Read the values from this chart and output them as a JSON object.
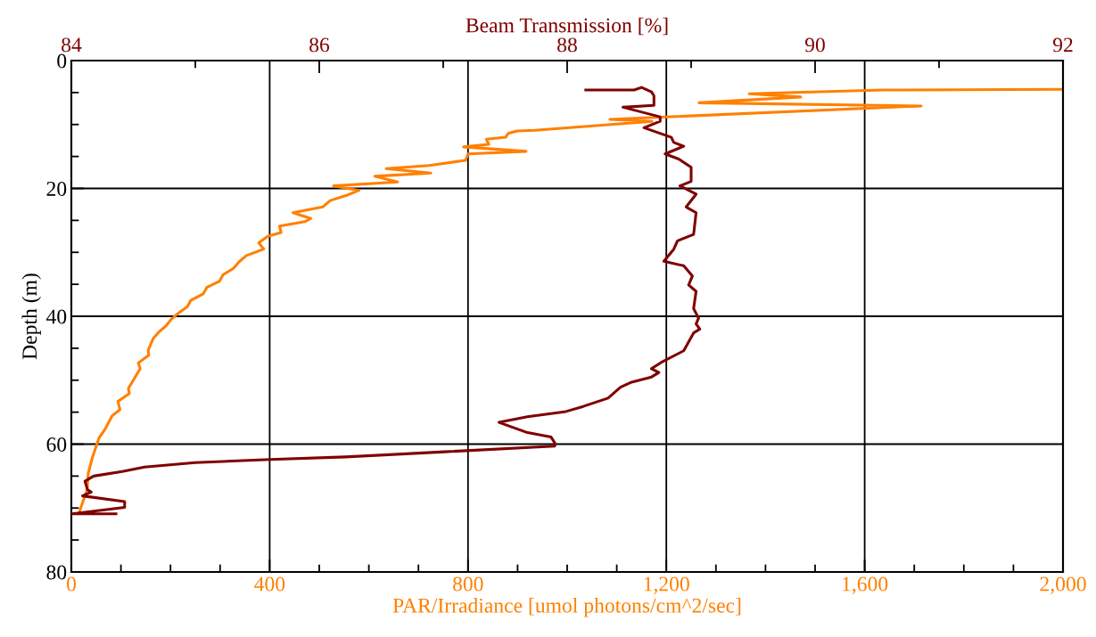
{
  "chart_data": {
    "type": "line",
    "xlabel": "PAR/Irradiance [umol photons/cm^2/sec]",
    "x2label": "Beam Transmission [%]",
    "ylabel": "Depth (m)",
    "xlim": [
      0,
      2000
    ],
    "xticks": [
      0,
      400,
      800,
      {
        "value": 1200,
        "label": "1,200"
      },
      {
        "value": 1600,
        "label": "1,600"
      },
      {
        "value": 2000,
        "label": "2,000"
      }
    ],
    "x2lim": [
      84,
      92
    ],
    "x2ticks": [
      84,
      86,
      88,
      90,
      92
    ],
    "ylim": [
      80,
      0
    ],
    "yticks": [
      0,
      20,
      40,
      60,
      80
    ],
    "grid": true,
    "marker": "none",
    "line_style": "solid",
    "series": [
      {
        "color": "#ff8000",
        "x": [
          2000,
          1637,
          1367,
          1471,
          1266,
          1714,
          1086,
          1171,
          935,
          899,
          881,
          876,
          837,
          842,
          791,
          917,
          800,
          795,
          722,
          635,
          725,
          612,
          658,
          529,
          580,
          558,
          522,
          507,
          447,
          483,
          471,
          420,
          423,
          396,
          378,
          388,
          353,
          338,
          327,
          306,
          299,
          273,
          266,
          241,
          234,
          216,
          201,
          191,
          176,
          165,
          155,
          156,
          135,
          139,
          115,
          117,
          94,
          98,
          82,
          67,
          56,
          42,
          34,
          32,
          26,
          18,
          16
        ],
        "values": [
          4.5,
          4.6,
          5.2,
          5.7,
          6.6,
          7.1,
          9.2,
          9.5,
          10.9,
          11,
          11.4,
          12,
          12.3,
          13.1,
          13.5,
          14.2,
          14.6,
          15.6,
          16.4,
          16.9,
          17.6,
          18.1,
          19,
          19.6,
          20.3,
          21,
          21.9,
          22.9,
          23.8,
          24.7,
          25.2,
          25.9,
          26.9,
          27.5,
          28.5,
          29.5,
          30.5,
          31.5,
          32.5,
          33.5,
          34.5,
          35.5,
          36.5,
          37.5,
          38.5,
          39.5,
          40.5,
          41.5,
          42.5,
          43.5,
          45.3,
          46.1,
          47.3,
          48.2,
          51.3,
          52.1,
          53.3,
          54.6,
          55.6,
          57.8,
          59,
          62.2,
          64.6,
          67.1,
          68.4,
          70.2,
          70.7
        ]
      },
      {
        "color": "#800000",
        "axis": "x2",
        "x": [
          88.15,
          88.54,
          88.6,
          88.68,
          88.7,
          88.7,
          88.45,
          88.75,
          88.75,
          88.62,
          88.84,
          88.86,
          88.94,
          88.79,
          88.9,
          89.0,
          89.0,
          88.91,
          89.04,
          88.96,
          89.04,
          89.02,
          88.89,
          88.86,
          88.78,
          88.94,
          89.01,
          88.98,
          89.04,
          89.02,
          89.06,
          89.04,
          89.07,
          89.02,
          88.94,
          88.76,
          88.68,
          88.74,
          88.68,
          88.52,
          88.43,
          88.33,
          88.13,
          87.99,
          87.68,
          87.45,
          87.68,
          87.87,
          87.9,
          87.9,
          87.01,
          86.21,
          85.6,
          85.0,
          84.59,
          84.41,
          84.18,
          84.11,
          84.13,
          84.16,
          84.09,
          84.43,
          84.43,
          84.05,
          84.0,
          84.36
        ],
        "values": [
          4.6,
          4.6,
          4.2,
          4.9,
          5.5,
          7.0,
          7.3,
          8.8,
          9.5,
          10.5,
          12.0,
          12.8,
          13.4,
          14.6,
          15.4,
          16.7,
          18.9,
          19.6,
          20.9,
          22.9,
          23.8,
          27.2,
          28.2,
          29.5,
          31.4,
          32.1,
          33.7,
          35.1,
          36.1,
          38.8,
          40.3,
          41.2,
          42,
          42.6,
          45.4,
          47.2,
          48.2,
          48.8,
          49.5,
          50.3,
          51.1,
          52.8,
          54.1,
          54.9,
          55.7,
          56.6,
          58.2,
          58.9,
          59.8,
          60.3,
          61.2,
          62,
          62.4,
          62.9,
          63.6,
          64.3,
          65,
          65.8,
          67.1,
          67.5,
          68.1,
          69,
          69.9,
          70.8,
          70.9,
          70.9
        ]
      }
    ]
  }
}
